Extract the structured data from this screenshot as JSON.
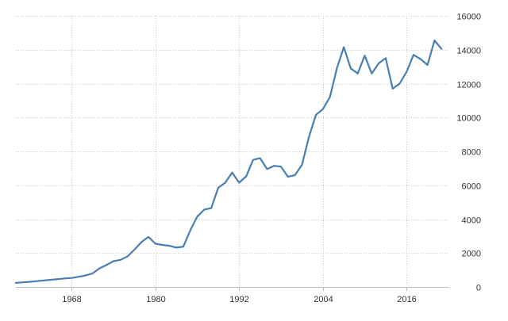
{
  "chart_data": {
    "type": "line",
    "title": "",
    "xlabel": "",
    "ylabel": "",
    "xlim": [
      1960,
      2022
    ],
    "ylim": [
      0,
      16000
    ],
    "x_ticks": [
      1968,
      1980,
      1992,
      2004,
      2016
    ],
    "y_ticks": [
      0,
      2000,
      4000,
      6000,
      8000,
      10000,
      12000,
      14000,
      16000
    ],
    "x_tick_labels": [
      "1968",
      "1980",
      "1992",
      "2004",
      "2016"
    ],
    "y_tick_labels": [
      "0",
      "2000",
      "4000",
      "6000",
      "8000",
      "10000",
      "12000",
      "14000",
      "16000"
    ],
    "grid": true,
    "line_color": "#4a7eb0",
    "series": [
      {
        "x": [
          1960,
          1961,
          1962,
          1963,
          1964,
          1965,
          1966,
          1967,
          1968,
          1969,
          1970,
          1971,
          1972,
          1973,
          1974,
          1975,
          1976,
          1977,
          1978,
          1979,
          1980,
          1981,
          1982,
          1983,
          1984,
          1985,
          1986,
          1987,
          1988,
          1989,
          1990,
          1991,
          1992,
          1993,
          1994,
          1995,
          1996,
          1997,
          1998,
          1999,
          2000,
          2001,
          2002,
          2003,
          2004,
          2005,
          2006,
          2007,
          2008,
          2009,
          2010,
          2011,
          2012,
          2013,
          2014,
          2015,
          2016,
          2017,
          2018,
          2019,
          2020,
          2021
        ],
        "values": [
          240,
          270,
          300,
          340,
          380,
          420,
          460,
          500,
          530,
          600,
          680,
          800,
          1100,
          1300,
          1520,
          1600,
          1800,
          2200,
          2650,
          2950,
          2550,
          2480,
          2430,
          2320,
          2380,
          3350,
          4150,
          4560,
          4650,
          5850,
          6150,
          6750,
          6150,
          6520,
          7500,
          7600,
          6950,
          7150,
          7100,
          6500,
          6600,
          7200,
          8850,
          10150,
          10500,
          11200,
          12900,
          14150,
          12900,
          12600,
          13650,
          12600,
          13200,
          13500,
          11700,
          12000,
          12700,
          13700,
          13450,
          13100,
          14550,
          14050
        ]
      }
    ]
  }
}
